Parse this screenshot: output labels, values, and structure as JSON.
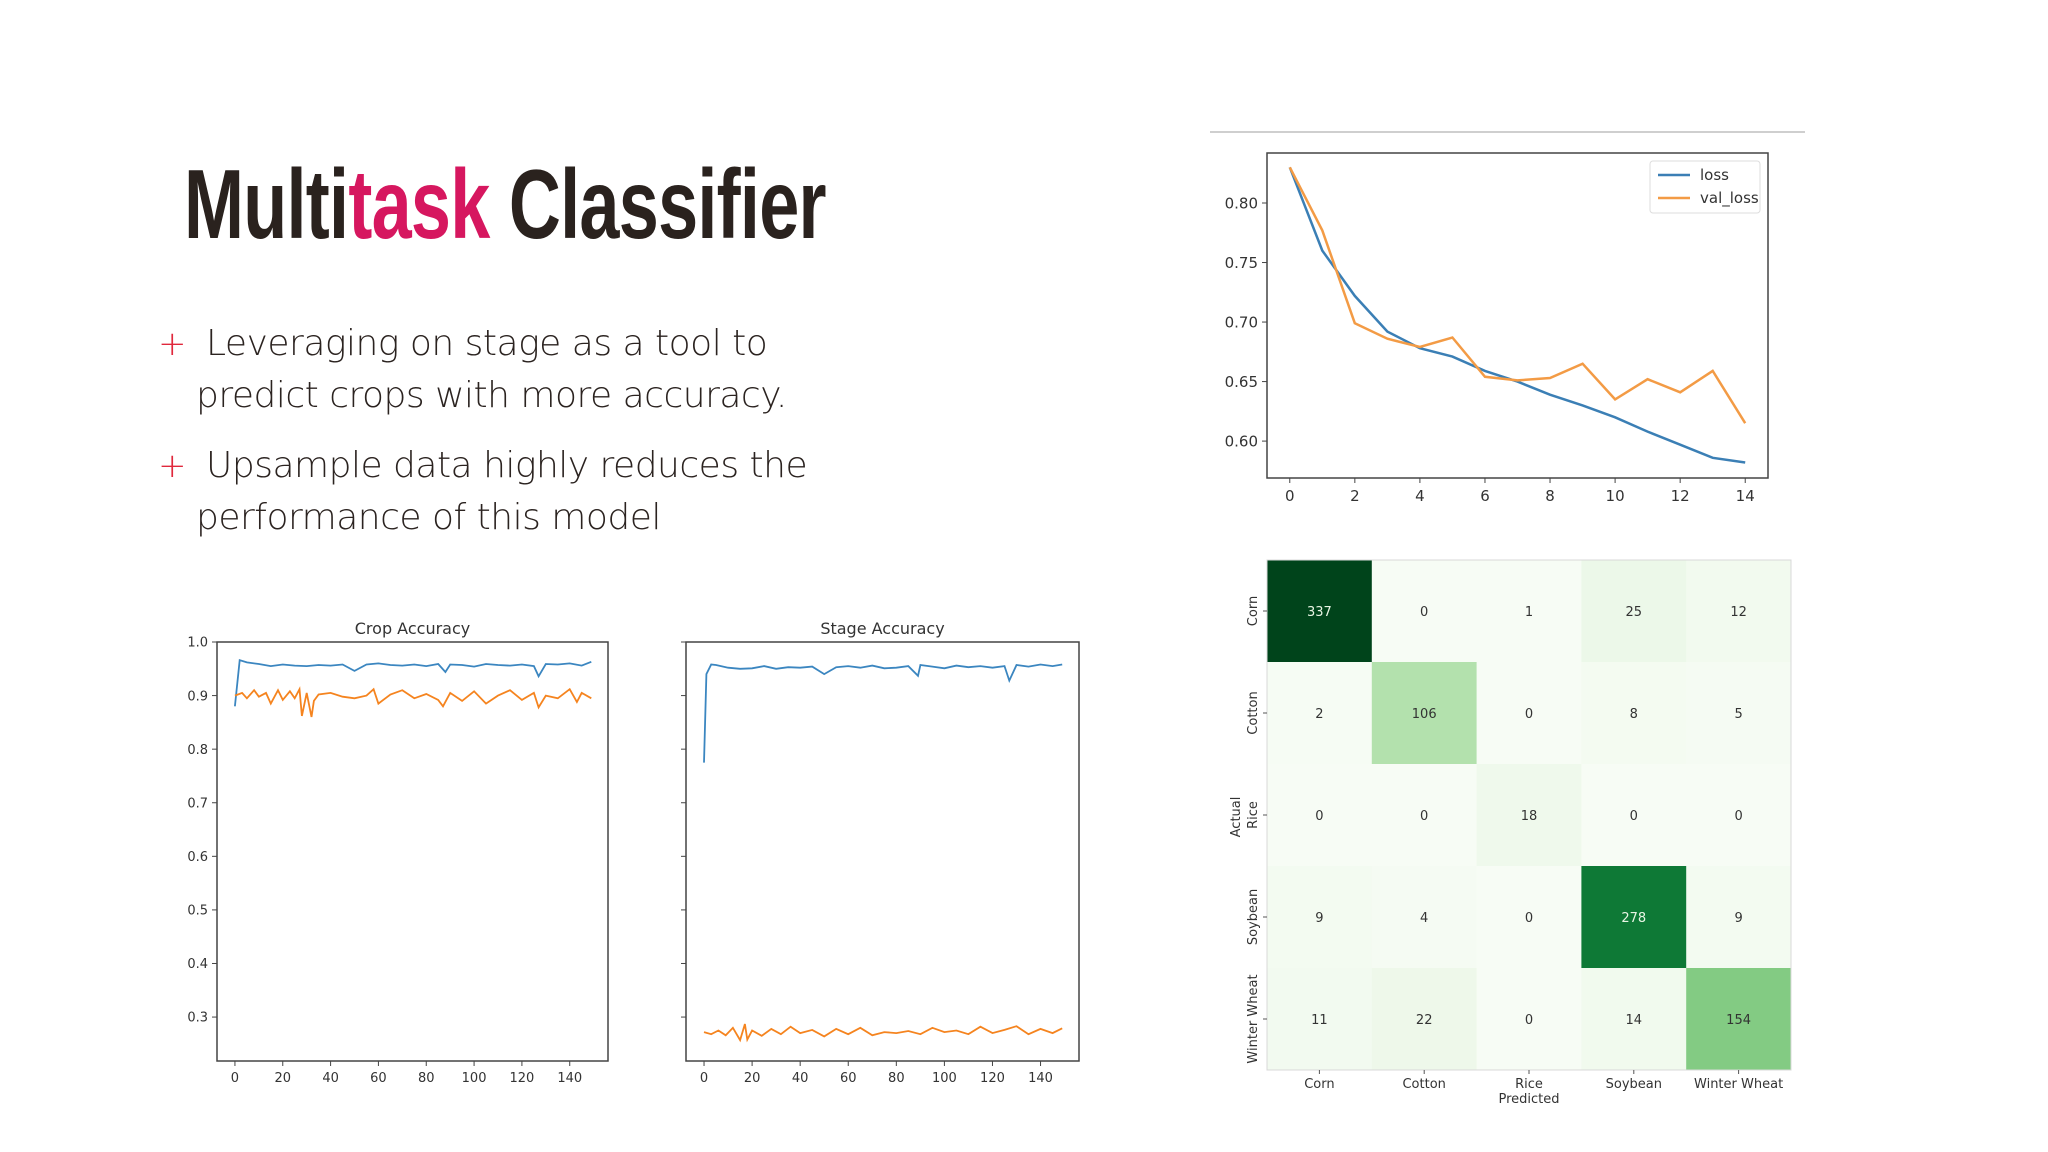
{
  "slide": {
    "title_part1": "Multi",
    "title_accent": "task",
    "title_part2": " Classifier",
    "accent_color": "#d6175f",
    "bullets": [
      {
        "icon": "plus-icon",
        "line1": "Leveraging on stage as a tool to",
        "line2": "predict crops with more accuracy."
      },
      {
        "icon": "plus-icon",
        "line1": "Upsample data highly reduces the",
        "line2": "performance of this model"
      }
    ]
  },
  "chart_data": [
    {
      "type": "line",
      "title": "",
      "xlim": [
        -0.7,
        14.7
      ],
      "ylim": [
        0.569,
        0.842
      ],
      "xticks": [
        0,
        2,
        4,
        6,
        8,
        10,
        12,
        14
      ],
      "yticks": [
        0.6,
        0.65,
        0.7,
        0.75,
        0.8
      ],
      "ytick_labels": [
        "0.60",
        "0.65",
        "0.70",
        "0.75",
        "0.80"
      ],
      "legend": "top-right",
      "x": [
        0,
        1,
        2,
        3,
        4,
        5,
        6,
        7,
        8,
        9,
        10,
        11,
        12,
        13,
        14
      ],
      "series": [
        {
          "name": "loss",
          "color": "#3b7fb5",
          "values": [
            0.83,
            0.76,
            0.722,
            0.692,
            0.678,
            0.671,
            0.659,
            0.65,
            0.639,
            0.63,
            0.62,
            0.608,
            0.597,
            0.586,
            0.582
          ]
        },
        {
          "name": "val_loss",
          "color": "#f39b45",
          "values": [
            0.83,
            0.777,
            0.699,
            0.686,
            0.679,
            0.687,
            0.654,
            0.651,
            0.653,
            0.665,
            0.635,
            0.652,
            0.641,
            0.659,
            0.615
          ]
        }
      ]
    },
    {
      "type": "line",
      "title": "Crop Accuracy",
      "xlim": [
        -7.5,
        156
      ],
      "ylim": [
        0.218,
        1.0
      ],
      "xticks": [
        0,
        20,
        40,
        60,
        80,
        100,
        120,
        140
      ],
      "yticks": [
        0.3,
        0.4,
        0.5,
        0.6,
        0.7,
        0.8,
        0.9,
        1.0
      ],
      "ytick_labels": [
        "0.3",
        "0.4",
        "0.5",
        "0.6",
        "0.7",
        "0.8",
        "0.9",
        "1.0"
      ],
      "series": [
        {
          "color": "#3b86c0",
          "x": [
            0,
            2,
            5,
            10,
            15,
            20,
            25,
            30,
            35,
            40,
            45,
            50,
            55,
            60,
            65,
            70,
            75,
            80,
            85,
            88,
            90,
            95,
            100,
            105,
            110,
            115,
            120,
            125,
            127,
            130,
            135,
            140,
            145,
            149
          ],
          "values": [
            0.88,
            0.966,
            0.962,
            0.959,
            0.955,
            0.958,
            0.956,
            0.955,
            0.957,
            0.956,
            0.958,
            0.946,
            0.958,
            0.96,
            0.957,
            0.956,
            0.958,
            0.955,
            0.959,
            0.944,
            0.958,
            0.957,
            0.954,
            0.959,
            0.957,
            0.956,
            0.958,
            0.955,
            0.936,
            0.959,
            0.958,
            0.96,
            0.956,
            0.963
          ]
        },
        {
          "color": "#f5841f",
          "x": [
            0,
            3,
            5,
            8,
            10,
            13,
            15,
            18,
            20,
            23,
            25,
            27,
            28,
            30,
            32,
            33,
            35,
            40,
            45,
            50,
            55,
            58,
            60,
            65,
            70,
            75,
            80,
            85,
            87,
            90,
            95,
            100,
            105,
            110,
            115,
            120,
            125,
            127,
            130,
            135,
            140,
            143,
            145,
            149
          ],
          "values": [
            0.9,
            0.905,
            0.895,
            0.91,
            0.898,
            0.905,
            0.885,
            0.91,
            0.892,
            0.908,
            0.895,
            0.912,
            0.862,
            0.905,
            0.86,
            0.89,
            0.902,
            0.905,
            0.898,
            0.895,
            0.9,
            0.912,
            0.885,
            0.902,
            0.91,
            0.895,
            0.903,
            0.892,
            0.88,
            0.905,
            0.89,
            0.908,
            0.885,
            0.9,
            0.91,
            0.892,
            0.905,
            0.878,
            0.9,
            0.895,
            0.912,
            0.888,
            0.905,
            0.895
          ]
        }
      ]
    },
    {
      "type": "line",
      "title": "Stage Accuracy",
      "xlim": [
        -7.5,
        156
      ],
      "ylim": [
        0.218,
        1.0
      ],
      "xticks": [
        0,
        20,
        40,
        60,
        80,
        100,
        120,
        140
      ],
      "yticks": [
        0.3,
        0.4,
        0.5,
        0.6,
        0.7,
        0.8,
        0.9,
        1.0
      ],
      "ytick_labels": [],
      "series": [
        {
          "color": "#3b86c0",
          "x": [
            0,
            1,
            3,
            5,
            10,
            15,
            20,
            25,
            30,
            35,
            40,
            45,
            50,
            55,
            60,
            65,
            70,
            75,
            80,
            85,
            89,
            90,
            95,
            100,
            105,
            110,
            115,
            120,
            125,
            127,
            130,
            135,
            140,
            145,
            149
          ],
          "values": [
            0.775,
            0.94,
            0.958,
            0.957,
            0.952,
            0.95,
            0.951,
            0.955,
            0.95,
            0.953,
            0.952,
            0.954,
            0.94,
            0.953,
            0.955,
            0.952,
            0.956,
            0.951,
            0.952,
            0.955,
            0.937,
            0.957,
            0.954,
            0.951,
            0.956,
            0.953,
            0.955,
            0.952,
            0.955,
            0.928,
            0.957,
            0.954,
            0.958,
            0.955,
            0.958
          ]
        },
        {
          "color": "#f5841f",
          "x": [
            0,
            3,
            6,
            9,
            12,
            15,
            17,
            18,
            20,
            24,
            28,
            32,
            36,
            40,
            45,
            50,
            55,
            60,
            65,
            70,
            75,
            80,
            85,
            90,
            95,
            100,
            105,
            110,
            115,
            120,
            125,
            130,
            135,
            140,
            145,
            149
          ],
          "values": [
            0.272,
            0.268,
            0.275,
            0.266,
            0.28,
            0.257,
            0.287,
            0.258,
            0.275,
            0.265,
            0.278,
            0.268,
            0.282,
            0.27,
            0.276,
            0.264,
            0.278,
            0.268,
            0.28,
            0.266,
            0.272,
            0.27,
            0.274,
            0.268,
            0.28,
            0.272,
            0.275,
            0.268,
            0.282,
            0.27,
            0.276,
            0.283,
            0.268,
            0.278,
            0.27,
            0.279
          ]
        }
      ]
    },
    {
      "type": "heatmap",
      "title": "",
      "xlabel": "Predicted",
      "ylabel": "Actual",
      "colormap": "Greens",
      "x_categories": [
        "Corn",
        "Cotton",
        "Rice",
        "Soybean",
        "Winter Wheat"
      ],
      "y_categories": [
        "Corn",
        "Cotton",
        "Rice",
        "Soybean",
        "Winter Wheat"
      ],
      "values": [
        [
          337,
          0,
          1,
          25,
          12
        ],
        [
          2,
          106,
          0,
          8,
          5
        ],
        [
          0,
          0,
          18,
          0,
          0
        ],
        [
          9,
          4,
          0,
          278,
          9
        ],
        [
          11,
          22,
          0,
          14,
          154
        ]
      ]
    }
  ]
}
